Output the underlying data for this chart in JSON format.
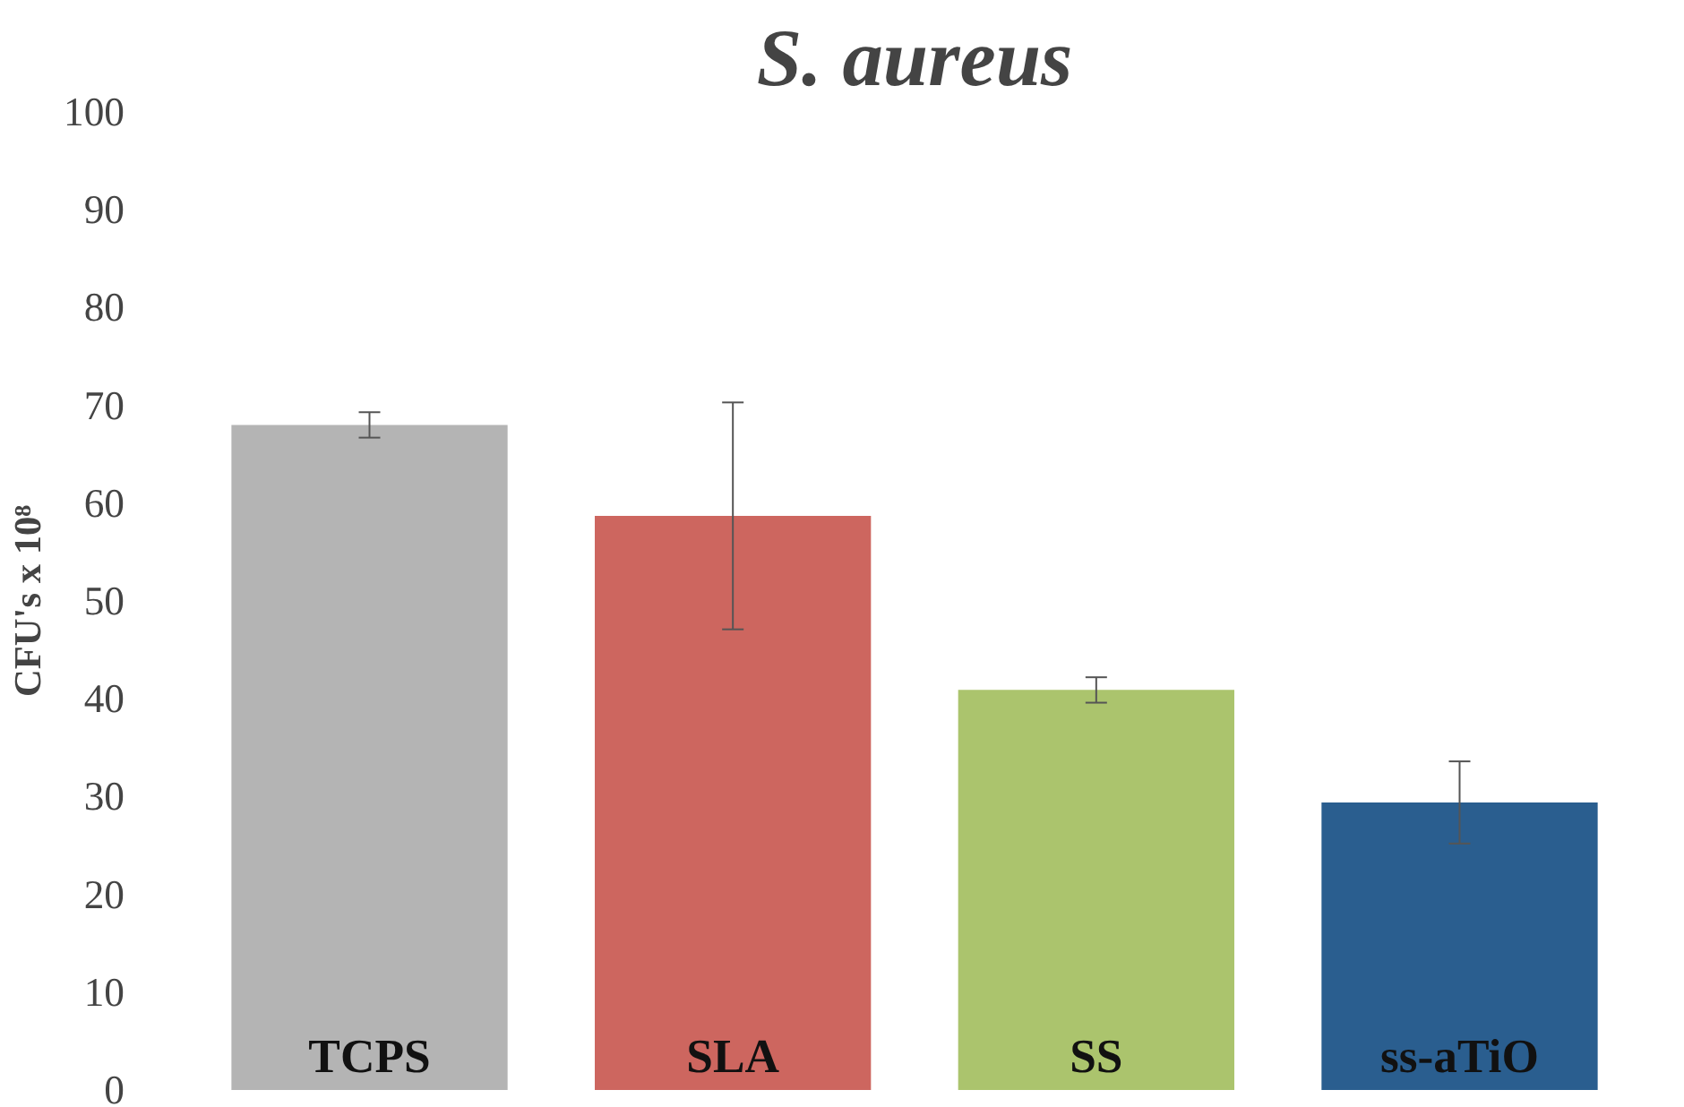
{
  "chart_data": {
    "type": "bar",
    "title": "S. aureus",
    "ylabel": "CFU's x 10⁸",
    "categories": [
      "TCPS",
      "SLA",
      "SS",
      "ss-aTiO"
    ],
    "values": [
      68.0,
      58.7,
      40.9,
      29.4
    ],
    "colors": [
      "#b4b4b4",
      "#cd665f",
      "#abc46d",
      "#2a5e8f"
    ],
    "errors": [
      1.3,
      11.6,
      1.3,
      4.2
    ],
    "ylim": [
      0,
      100
    ],
    "yticks": [
      0,
      10,
      20,
      30,
      40,
      50,
      60,
      70,
      80,
      90,
      100
    ],
    "grid": false
  }
}
